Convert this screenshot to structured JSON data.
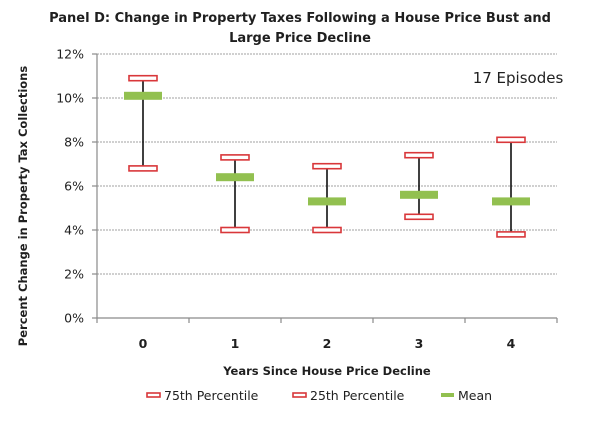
{
  "chart_data": {
    "type": "scatter",
    "subtype": "high-low-mean range plot",
    "title_lines": [
      "Panel D: Change in Property Taxes Following a House Price Bust and",
      "Large  Price Decline"
    ],
    "xlabel": "Years Since House Price Decline",
    "ylabel": "Percent Change in Property Tax Collections",
    "categories": [
      "0",
      "1",
      "2",
      "3",
      "4"
    ],
    "ylim": [
      0,
      12
    ],
    "yticks": [
      0,
      2,
      4,
      6,
      8,
      10,
      12
    ],
    "ytick_labels": [
      "0%",
      "2%",
      "4%",
      "6%",
      "8%",
      "10%",
      "12%"
    ],
    "grid": true,
    "annotation": "17 Episodes",
    "legend_position": "bottom",
    "series": [
      {
        "name": "75th Percentile",
        "marker": "red-outline-rect",
        "color": "#d9373a",
        "values": [
          10.9,
          7.3,
          6.9,
          7.4,
          8.1
        ]
      },
      {
        "name": "25th Percentile",
        "marker": "red-outline-rect",
        "color": "#d9373a",
        "values": [
          6.8,
          4.0,
          4.0,
          4.6,
          3.8
        ]
      },
      {
        "name": "Mean",
        "marker": "green-bar",
        "color": "#92c050",
        "values": [
          10.1,
          6.4,
          5.3,
          5.6,
          5.3
        ]
      }
    ]
  }
}
